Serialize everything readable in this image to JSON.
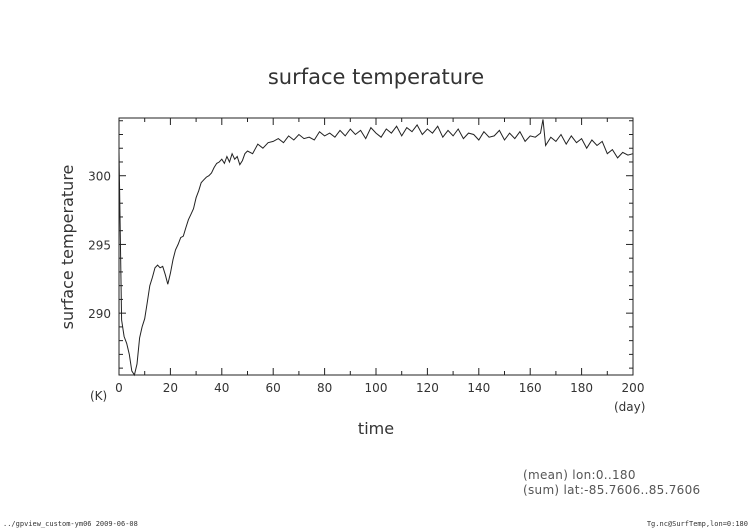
{
  "chart_data": {
    "type": "line",
    "title": "surface temperature",
    "xlabel": "time",
    "ylabel": "surface temperature",
    "x_unit": "(day)",
    "y_unit": "(K)",
    "xlim": [
      0,
      200
    ],
    "ylim": [
      285.5,
      304.2
    ],
    "x_ticks": [
      0,
      20,
      40,
      60,
      80,
      100,
      120,
      140,
      160,
      180,
      200
    ],
    "y_ticks": [
      290,
      295,
      300
    ],
    "grid": false,
    "series": [
      {
        "color": "#222222",
        "x": [
          0,
          1,
          2,
          3,
          4,
          5,
          6,
          7,
          8,
          9,
          10,
          11,
          12,
          13,
          14,
          15,
          16,
          17,
          18,
          19,
          20,
          21,
          22,
          23,
          24,
          25,
          26,
          27,
          28,
          29,
          30,
          31,
          32,
          33,
          34,
          35,
          36,
          37,
          38,
          39,
          40,
          41,
          42,
          43,
          44,
          45,
          46,
          47,
          48,
          49,
          50,
          52,
          54,
          56,
          58,
          60,
          62,
          64,
          66,
          68,
          70,
          72,
          74,
          76,
          78,
          80,
          82,
          84,
          86,
          88,
          90,
          92,
          94,
          96,
          98,
          100,
          102,
          104,
          106,
          108,
          110,
          112,
          114,
          116,
          118,
          120,
          122,
          124,
          126,
          128,
          130,
          132,
          134,
          136,
          138,
          140,
          142,
          144,
          146,
          148,
          150,
          152,
          154,
          156,
          158,
          160,
          162,
          164,
          165,
          166,
          168,
          170,
          172,
          174,
          176,
          178,
          180,
          182,
          184,
          186,
          188,
          190,
          192,
          194,
          196,
          198,
          200
        ],
        "y": [
          301.8,
          289.5,
          288.3,
          287.8,
          287.0,
          285.8,
          285.3,
          286.3,
          288.2,
          289.0,
          289.6,
          290.8,
          292.0,
          292.6,
          293.3,
          293.5,
          293.3,
          293.4,
          292.8,
          292.1,
          292.9,
          293.9,
          294.6,
          295.0,
          295.5,
          295.6,
          296.2,
          296.8,
          297.2,
          297.6,
          298.4,
          298.9,
          299.5,
          299.7,
          299.9,
          300.0,
          300.2,
          300.6,
          300.9,
          301.0,
          301.2,
          300.9,
          301.4,
          301.0,
          301.6,
          301.2,
          301.4,
          300.8,
          301.1,
          301.6,
          301.8,
          301.6,
          302.3,
          302.0,
          302.4,
          302.5,
          302.7,
          302.4,
          302.9,
          302.6,
          303.0,
          302.7,
          302.8,
          302.6,
          303.2,
          302.9,
          303.1,
          302.8,
          303.3,
          302.9,
          303.4,
          303.0,
          303.3,
          302.7,
          303.5,
          303.1,
          302.8,
          303.4,
          303.1,
          303.6,
          302.9,
          303.5,
          303.2,
          303.7,
          303.0,
          303.4,
          303.1,
          303.6,
          302.8,
          303.3,
          302.9,
          303.4,
          302.7,
          303.1,
          303.0,
          302.6,
          303.2,
          302.8,
          302.9,
          303.3,
          302.6,
          303.1,
          302.7,
          303.2,
          302.5,
          302.9,
          302.8,
          303.1,
          304.1,
          302.2,
          302.8,
          302.5,
          303.0,
          302.3,
          302.9,
          302.4,
          302.7,
          302.0,
          302.6,
          302.2,
          302.5,
          301.6,
          301.9,
          301.3,
          301.7,
          301.5,
          301.6
        ]
      }
    ]
  },
  "notes": {
    "mean": "(mean) lon:0..180",
    "sum": "(sum) lat:-85.7606..85.7606"
  },
  "footer": {
    "left": "../gpview_custom-ym06  2009-06-08",
    "right": "Tg.nc@SurfTemp,lon=0:180"
  }
}
